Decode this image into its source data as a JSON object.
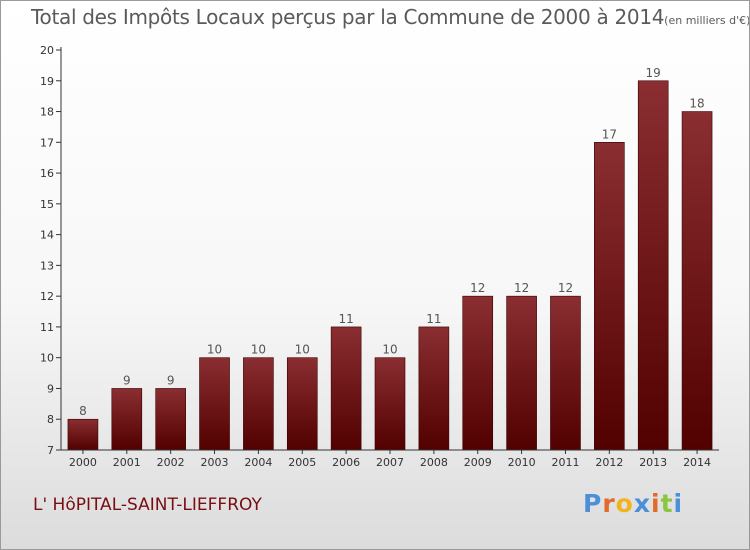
{
  "title": "Total des Impôts Locaux perçus par la Commune de 2000 à 2014",
  "subtitle": "(en milliers d'€)",
  "commune": "L' HôPITAL-SAINT-LIEFFROY",
  "brand": {
    "letters": [
      "P",
      "r",
      "o",
      "x",
      "i",
      "t",
      "i"
    ],
    "colors": [
      "#4b8fd8",
      "#e26a2c",
      "#f3b31c",
      "#4b8fd8",
      "#e26a2c",
      "#8cc63f",
      "#4b8fd8"
    ]
  },
  "colors": {
    "bar_top": "#8a2e32",
    "bar_bottom": "#520000",
    "axis": "#333333",
    "text": "#555555"
  },
  "chart_data": {
    "type": "bar",
    "categories": [
      "2000",
      "2001",
      "2002",
      "2003",
      "2004",
      "2005",
      "2006",
      "2007",
      "2008",
      "2009",
      "2010",
      "2011",
      "2012",
      "2013",
      "2014"
    ],
    "values": [
      8,
      9,
      9,
      10,
      10,
      10,
      11,
      10,
      11,
      12,
      12,
      12,
      17,
      19,
      18
    ],
    "data_labels": [
      "8",
      "9",
      "9",
      "10",
      "10",
      "10",
      "11",
      "10",
      "11",
      "12",
      "12",
      "12",
      "17",
      "19",
      "18"
    ],
    "yticks": [
      "7",
      "8",
      "9",
      "10",
      "11",
      "12",
      "13",
      "14",
      "15",
      "16",
      "17",
      "18",
      "19",
      "20"
    ],
    "ylim": [
      7,
      20
    ],
    "grid": false,
    "legend": "none"
  }
}
